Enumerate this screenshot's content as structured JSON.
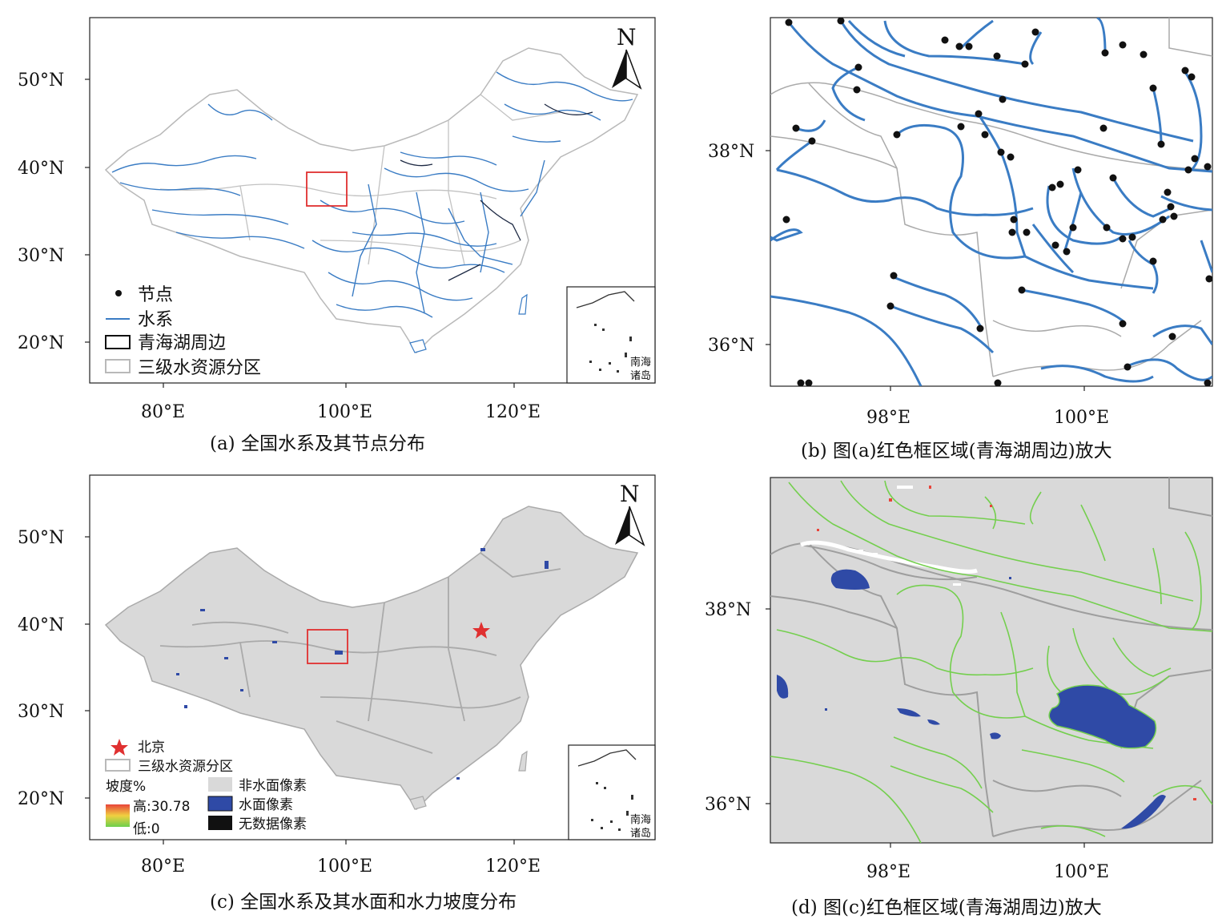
{
  "panels": {
    "a": {
      "caption": "(a) 全国水系及其节点分布",
      "lat_labels": [
        "50°N",
        "40°N",
        "30°N",
        "20°N"
      ],
      "lon_labels": [
        "80°E",
        "100°E",
        "120°E"
      ],
      "north": "N",
      "legend": {
        "node": "节点",
        "river": "水系",
        "qhl": "青海湖周边",
        "zone": "三级水资源分区"
      },
      "inset_label": [
        "南海",
        "诸岛"
      ]
    },
    "b": {
      "caption": "(b) 图(a)红色框区域(青海湖周边)放大",
      "lat_labels": [
        "38°N",
        "36°N"
      ],
      "lon_labels": [
        "98°E",
        "100°E"
      ]
    },
    "c": {
      "caption": "(c) 全国水系及其水面和水力坡度分布",
      "lat_labels": [
        "50°N",
        "40°N",
        "30°N",
        "20°N"
      ],
      "lon_labels": [
        "80°E",
        "100°E",
        "120°E"
      ],
      "north": "N",
      "legend": {
        "beijing": "北京",
        "zone": "三级水资源分区",
        "slope_title": "坡度%",
        "slope_high": "高:30.78",
        "slope_low": "低:0",
        "nonwater": "非水面像素",
        "water": "水面像素",
        "nodata": "无数据像素"
      },
      "inset_label": [
        "南海",
        "诸岛"
      ]
    },
    "d": {
      "caption": "(d) 图(c)红色框区域(青海湖周边)放大",
      "lat_labels": [
        "38°N",
        "36°N"
      ],
      "lon_labels": [
        "98°E",
        "100°E"
      ]
    }
  },
  "colors": {
    "river": "#3a7cc4",
    "zone": "#b9b9b9",
    "land": "#d9d9d9",
    "water": "#2f4aa6",
    "redbox": "#e03030",
    "slope_high": "#e8443a",
    "slope_low": "#6cd04c"
  }
}
